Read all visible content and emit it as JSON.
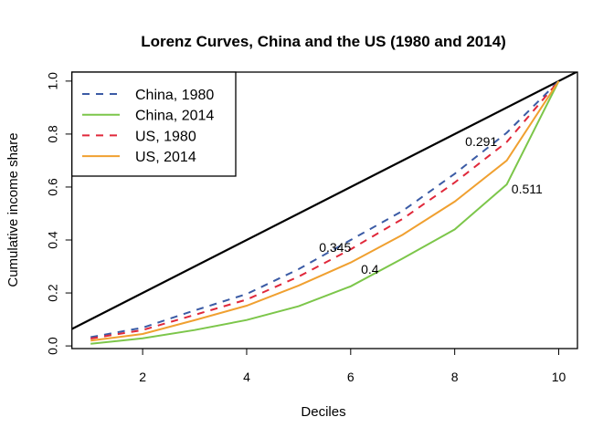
{
  "chart_data": {
    "type": "line",
    "title": "Lorenz Curves, China and the US (1980 and 2014)",
    "xlabel": "Deciles",
    "ylabel": "Cumulative income share",
    "xlim": [
      0.64,
      10.36
    ],
    "ylim": [
      -0.01,
      1.034
    ],
    "xticks": [
      2,
      4,
      6,
      8,
      10
    ],
    "yticks": [
      "0.0",
      "0.2",
      "0.4",
      "0.6",
      "0.8",
      "1.0"
    ],
    "grid": false,
    "legend_position": "top-left",
    "x": [
      1,
      2,
      3,
      4,
      5,
      6,
      7,
      8,
      9,
      10
    ],
    "series": [
      {
        "name": "China, 1980",
        "color": "#3b5ba5",
        "dash": true,
        "values": [
          0.033,
          0.069,
          0.134,
          0.196,
          0.29,
          0.4,
          0.51,
          0.65,
          0.805,
          1.0
        ]
      },
      {
        "name": "China, 2014",
        "color": "#7cc64a",
        "dash": false,
        "values": [
          0.008,
          0.029,
          0.06,
          0.098,
          0.15,
          0.225,
          0.33,
          0.44,
          0.61,
          1.0
        ]
      },
      {
        "name": "US, 1980",
        "color": "#e0283a",
        "dash": true,
        "values": [
          0.028,
          0.06,
          0.117,
          0.175,
          0.262,
          0.365,
          0.48,
          0.617,
          0.77,
          1.0
        ]
      },
      {
        "name": "US, 2014",
        "color": "#f0a030",
        "dash": false,
        "values": [
          0.02,
          0.045,
          0.097,
          0.152,
          0.228,
          0.315,
          0.42,
          0.545,
          0.7,
          1.0
        ]
      }
    ],
    "reference_line": {
      "slope": 0.1,
      "intercept": 0,
      "color": "#000000"
    },
    "annotations": [
      {
        "text": "0.345",
        "x": 5.7,
        "y": 0.372
      },
      {
        "text": "0.4",
        "x": 6.37,
        "y": 0.29
      },
      {
        "text": "0.291",
        "x": 8.51,
        "y": 0.772
      },
      {
        "text": "0.511",
        "x": 9.39,
        "y": 0.593
      }
    ]
  }
}
